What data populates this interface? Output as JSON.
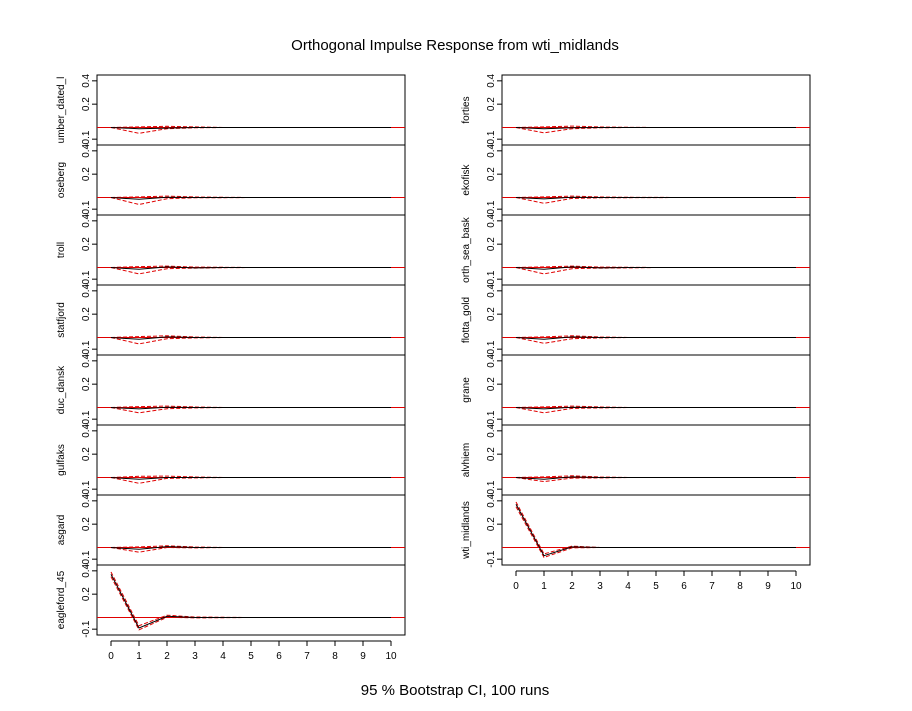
{
  "title": "Orthogonal Impulse Response from wti_midlands",
  "footer": "95 % Bootstrap CI,  100 runs",
  "colors": {
    "response": "#000000",
    "ci": "#e00000",
    "zero_line": "#e00000",
    "frame": "#000000"
  },
  "chart_data": {
    "type": "line",
    "x": [
      0,
      1,
      2,
      3,
      4,
      5,
      6,
      7,
      8,
      9,
      10
    ],
    "x_ticks": [
      "0",
      "1",
      "2",
      "3",
      "4",
      "5",
      "6",
      "7",
      "8",
      "9",
      "10"
    ],
    "y_ticks": [
      "-0.1",
      "0.2",
      "0.4"
    ],
    "ylim": [
      -0.15,
      0.45
    ],
    "grid": false,
    "zero_line": 0,
    "columns": [
      [
        {
          "name": "umber_dated_l",
          "response": [
            0,
            -0.01,
            -0.005,
            0,
            0,
            0,
            0,
            0,
            0,
            0,
            0
          ],
          "lower": [
            0,
            -0.05,
            -0.01,
            -0.003,
            0,
            0,
            0,
            0,
            0,
            0,
            0
          ],
          "upper": [
            0,
            0.005,
            0.01,
            0.005,
            0,
            0,
            0,
            0,
            0,
            0,
            0
          ]
        },
        {
          "name": "oseberg",
          "response": [
            0,
            -0.015,
            0.002,
            0,
            0,
            0,
            0,
            0,
            0,
            0,
            0
          ],
          "lower": [
            0,
            -0.06,
            -0.01,
            -0.003,
            -0.002,
            0,
            0,
            0,
            0,
            0,
            0
          ],
          "upper": [
            0,
            0.005,
            0.012,
            0.004,
            0.002,
            0,
            0,
            0,
            0,
            0,
            0
          ]
        },
        {
          "name": "troll",
          "response": [
            0,
            -0.015,
            0.005,
            -0.003,
            0,
            0,
            0,
            0,
            0,
            0,
            0
          ],
          "lower": [
            0,
            -0.055,
            -0.01,
            -0.005,
            -0.002,
            0,
            0,
            0,
            0,
            0,
            0
          ],
          "upper": [
            0,
            0.008,
            0.012,
            0.003,
            0.002,
            0,
            0,
            0,
            0,
            0,
            0
          ]
        },
        {
          "name": "statfjord",
          "response": [
            0,
            -0.015,
            0.005,
            0,
            0,
            0,
            0,
            0,
            0,
            0,
            0
          ],
          "lower": [
            0,
            -0.055,
            -0.01,
            -0.003,
            0,
            0,
            0,
            0,
            0,
            0,
            0
          ],
          "upper": [
            0,
            0.008,
            0.015,
            0.004,
            0,
            0,
            0,
            0,
            0,
            0,
            0
          ]
        },
        {
          "name": "duc_dansk",
          "response": [
            0,
            -0.012,
            0.002,
            0,
            0,
            0,
            0,
            0,
            0,
            0,
            0
          ],
          "lower": [
            0,
            -0.045,
            -0.01,
            -0.003,
            0,
            0,
            0,
            0,
            0,
            0,
            0
          ],
          "upper": [
            0,
            0.008,
            0.012,
            0.004,
            0,
            0,
            0,
            0,
            0,
            0,
            0
          ]
        },
        {
          "name": "gulfaks",
          "response": [
            0,
            -0.015,
            0,
            0,
            0,
            0,
            0,
            0,
            0,
            0,
            0
          ],
          "lower": [
            0,
            -0.05,
            -0.008,
            -0.003,
            0,
            0,
            0,
            0,
            0,
            0,
            0
          ],
          "upper": [
            0,
            0.01,
            0.012,
            0.004,
            0,
            0,
            0,
            0,
            0,
            0,
            0
          ]
        },
        {
          "name": "asgard",
          "response": [
            0,
            -0.015,
            0.008,
            0,
            0,
            0,
            0,
            0,
            0,
            0,
            0
          ],
          "lower": [
            0,
            -0.04,
            0,
            -0.003,
            0,
            0,
            0,
            0,
            0,
            0,
            0
          ],
          "upper": [
            0,
            0.005,
            0.015,
            0.004,
            0,
            0,
            0,
            0,
            0,
            0,
            0
          ]
        },
        {
          "name": "eagleford_45",
          "response": [
            0.37,
            -0.09,
            0.01,
            0,
            0,
            0,
            0,
            0,
            0,
            0,
            0
          ],
          "lower": [
            0.35,
            -0.105,
            0.002,
            -0.003,
            -0.002,
            0,
            0,
            0,
            0,
            0,
            0
          ],
          "upper": [
            0.39,
            -0.07,
            0.02,
            0.004,
            0.002,
            0,
            0,
            0,
            0,
            0,
            0
          ]
        }
      ],
      [
        {
          "name": "forties",
          "response": [
            0,
            -0.01,
            -0.003,
            0,
            0,
            0,
            0,
            0,
            0,
            0,
            0
          ],
          "lower": [
            0,
            -0.045,
            -0.01,
            -0.003,
            0,
            0,
            0,
            0,
            0,
            0,
            0
          ],
          "upper": [
            0,
            0.005,
            0.012,
            0.004,
            0.002,
            0,
            0,
            0,
            0,
            0,
            0
          ]
        },
        {
          "name": "ekofisk",
          "response": [
            0,
            -0.012,
            0.002,
            0,
            0,
            0,
            0,
            0,
            0,
            0,
            0
          ],
          "lower": [
            0,
            -0.05,
            -0.008,
            -0.003,
            -0.002,
            -0.001,
            0,
            0,
            0,
            0,
            0
          ],
          "upper": [
            0,
            0.005,
            0.012,
            0.004,
            0.002,
            0.001,
            0,
            0,
            0,
            0,
            0
          ]
        },
        {
          "name": "orth_sea_bask",
          "response": [
            0,
            -0.015,
            0.005,
            -0.003,
            0,
            0,
            0,
            0,
            0,
            0,
            0
          ],
          "lower": [
            0,
            -0.055,
            -0.01,
            -0.005,
            -0.003,
            0,
            0,
            0,
            0,
            0,
            0
          ],
          "upper": [
            0,
            0.005,
            0.012,
            0.003,
            0.002,
            0,
            0,
            0,
            0,
            0,
            0
          ]
        },
        {
          "name": "flotta_gold",
          "response": [
            0,
            -0.015,
            0.005,
            0,
            0,
            0,
            0,
            0,
            0,
            0,
            0
          ],
          "lower": [
            0,
            -0.05,
            -0.01,
            -0.003,
            0,
            0,
            0,
            0,
            0,
            0,
            0
          ],
          "upper": [
            0,
            0.005,
            0.015,
            0.004,
            0,
            0,
            0,
            0,
            0,
            0,
            0
          ]
        },
        {
          "name": "grane",
          "response": [
            0,
            -0.012,
            0.002,
            0,
            0,
            0,
            0,
            0,
            0,
            0,
            0
          ],
          "lower": [
            0,
            -0.045,
            -0.008,
            -0.003,
            0,
            0,
            0,
            0,
            0,
            0,
            0
          ],
          "upper": [
            0,
            0.005,
            0.012,
            0.004,
            0,
            0,
            0,
            0,
            0,
            0,
            0
          ]
        },
        {
          "name": "alvhiem",
          "response": [
            0,
            -0.015,
            0.005,
            0,
            0,
            0,
            0,
            0,
            0,
            0,
            0
          ],
          "lower": [
            0,
            -0.035,
            -0.005,
            -0.003,
            0,
            0,
            0,
            0,
            0,
            0,
            0
          ],
          "upper": [
            0,
            0.005,
            0.015,
            0.004,
            0,
            0,
            0,
            0,
            0,
            0,
            0
          ]
        },
        {
          "name": "wti_midlands",
          "response": [
            0.37,
            -0.07,
            0.005,
            0,
            0,
            0,
            0,
            0,
            0,
            0,
            0
          ],
          "lower": [
            0.35,
            -0.085,
            -0.003,
            0,
            0,
            0,
            0,
            0,
            0,
            0,
            0
          ],
          "upper": [
            0.39,
            -0.055,
            0.012,
            0,
            0,
            0,
            0,
            0,
            0,
            0,
            0
          ]
        }
      ]
    ]
  }
}
